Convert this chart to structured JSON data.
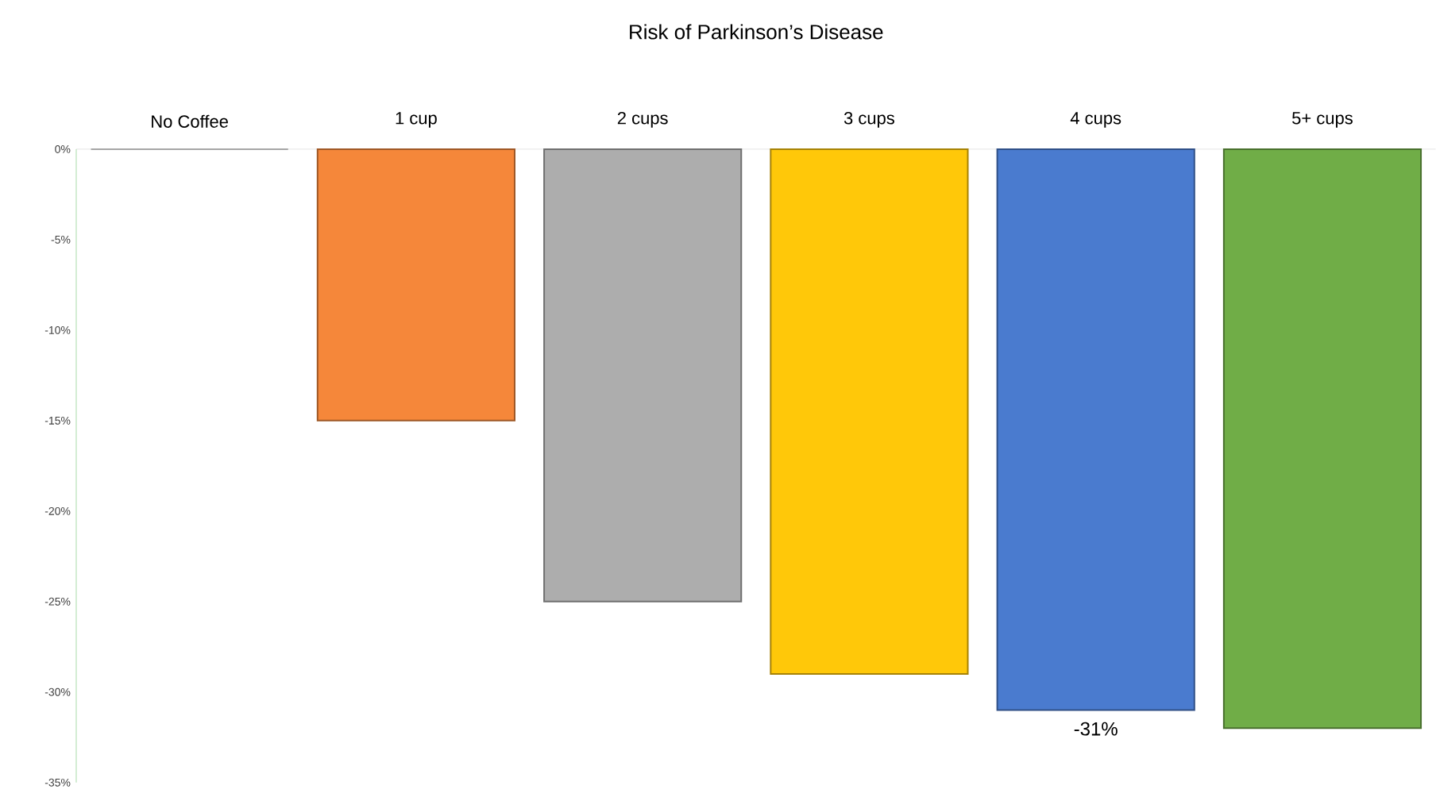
{
  "chart_data": {
    "type": "bar",
    "title": "Risk of Parkinson’s Disease",
    "categories": [
      "No Coffee",
      "1 cup",
      "2 cups",
      "3 cups",
      "4 cups",
      "5+ cups"
    ],
    "values": [
      0,
      -15,
      -25,
      -29,
      -31,
      -32
    ],
    "colors": [
      "#ffffff",
      "#f5873a",
      "#adadad",
      "#ffc809",
      "#4a7bcf",
      "#70ad47"
    ],
    "value_labels": [
      null,
      null,
      null,
      null,
      "-31%",
      null
    ],
    "ylim": [
      -35,
      0
    ],
    "yticks": [
      {
        "value": 0,
        "label": "0%"
      },
      {
        "value": -5,
        "label": "-5%"
      },
      {
        "value": -10,
        "label": "-10%"
      },
      {
        "value": -15,
        "label": "-15%"
      },
      {
        "value": -20,
        "label": "-20%"
      },
      {
        "value": -25,
        "label": "-25%"
      },
      {
        "value": -30,
        "label": "-30%"
      },
      {
        "value": -35,
        "label": "-35%"
      }
    ]
  }
}
